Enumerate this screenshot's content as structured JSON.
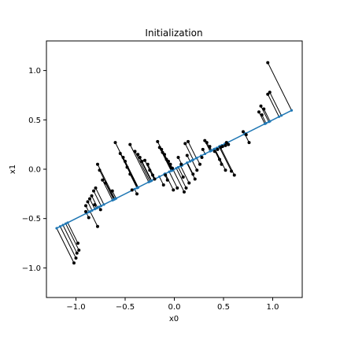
{
  "chart_data": {
    "type": "scatter",
    "title": "Initialization",
    "xlabel": "x0",
    "ylabel": "x1",
    "xlim": [
      -1.3,
      1.3
    ],
    "ylim": [
      -1.3,
      1.3
    ],
    "xticks": [
      -1.0,
      -0.5,
      0.0,
      0.5,
      1.0
    ],
    "xtick_labels": [
      "−1.0",
      "−0.5",
      "0.0",
      "0.5",
      "1.0"
    ],
    "yticks": [
      1.0,
      0.5,
      0.0,
      -0.5,
      -1.0
    ],
    "ytick_labels": [
      "1.0",
      "0.5",
      "0.0",
      "−0.5",
      "−1.0"
    ],
    "grid": false,
    "line": {
      "x": [
        -1.2,
        1.2
      ],
      "y": [
        -0.6,
        0.6
      ],
      "color": "#1f77b4"
    },
    "point_color": "#000000",
    "residual_color": "#000000",
    "points": {
      "x": [
        0.95,
        0.97,
        0.95,
        0.88,
        0.91,
        0.86,
        0.89,
        0.7,
        0.73,
        0.76,
        0.53,
        0.55,
        0.52,
        0.49,
        0.47,
        0.44,
        0.41,
        0.46,
        0.48,
        0.52,
        0.58,
        0.61,
        0.31,
        0.33,
        0.36,
        0.29,
        0.28,
        0.26,
        0.23,
        0.19,
        0.21,
        0.14,
        0.11,
        0.13,
        0.04,
        0.07,
        0.09,
        0.15,
        0.12,
        0.1,
        -0.17,
        -0.15,
        -0.13,
        -0.12,
        -0.1,
        -0.08,
        -0.06,
        -0.04,
        -0.02,
        -0.09,
        -0.07,
        -0.11,
        -0.01,
        0.03,
        -0.45,
        -0.4,
        -0.37,
        -0.35,
        -0.3,
        -0.27,
        -0.25,
        -0.22,
        -0.2,
        -0.33,
        -0.6,
        -0.55,
        -0.52,
        -0.5,
        -0.48,
        -0.45,
        -0.63,
        -0.43,
        -0.38,
        -0.78,
        -0.76,
        -0.73,
        -0.7,
        -0.8,
        -0.82,
        -0.84,
        -0.86,
        -0.88,
        -0.81,
        -0.9,
        -0.75,
        -0.98,
        -0.97,
        -0.99,
        -1.0,
        -1.02,
        -0.9,
        -0.87,
        -0.78
      ],
      "y": [
        1.08,
        0.78,
        0.76,
        0.64,
        0.61,
        0.58,
        0.55,
        0.38,
        0.35,
        0.27,
        0.27,
        0.25,
        0.24,
        0.23,
        0.22,
        0.2,
        0.18,
        0.1,
        0.05,
        -0.01,
        -0.02,
        -0.06,
        0.29,
        0.27,
        0.23,
        0.2,
        0.12,
        0.05,
        -0.01,
        -0.05,
        -0.1,
        0.28,
        0.26,
        0.14,
        0.12,
        0.05,
        -0.08,
        -0.14,
        -0.19,
        -0.23,
        0.28,
        0.22,
        0.2,
        0.17,
        0.15,
        0.1,
        0.08,
        0.05,
        0.01,
        -0.06,
        -0.11,
        -0.16,
        -0.21,
        -0.19,
        0.25,
        0.18,
        0.15,
        0.12,
        0.09,
        0.05,
        -0.01,
        -0.06,
        -0.1,
        0.08,
        0.27,
        0.16,
        0.12,
        0.08,
        0.02,
        -0.05,
        -0.22,
        -0.21,
        -0.25,
        0.05,
        -0.01,
        -0.11,
        -0.14,
        -0.19,
        -0.22,
        -0.27,
        -0.3,
        -0.33,
        -0.36,
        -0.37,
        -0.41,
        -0.75,
        -0.82,
        -0.85,
        -0.9,
        -0.95,
        -0.43,
        -0.49,
        -0.58
      ]
    }
  }
}
